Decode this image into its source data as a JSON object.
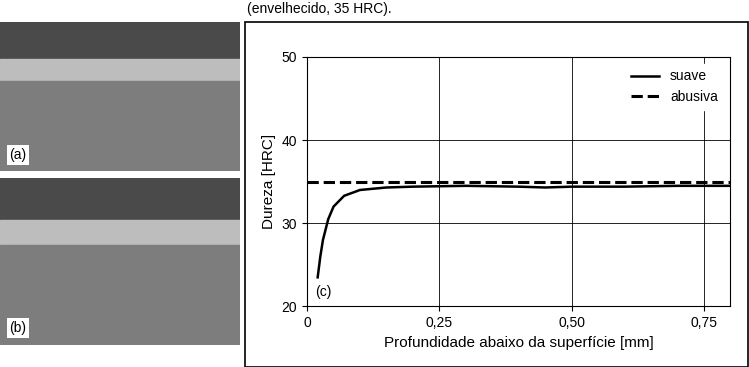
{
  "header_text": "(envelhecido, 35 HRC).",
  "photo_labels": [
    "(a)",
    "(b)"
  ],
  "chart_data": {
    "type": "line",
    "panel_label": "(c)",
    "x_label": "Profundidade abaixo da superfície [mm]",
    "y_label": "Dureza [HRC]",
    "xlim": [
      0,
      0.8
    ],
    "ylim": [
      20,
      50
    ],
    "xticks": [
      {
        "value": 0,
        "label": "0"
      },
      {
        "value": 0.25,
        "label": "0,25"
      },
      {
        "value": 0.5,
        "label": "0,50"
      },
      {
        "value": 0.75,
        "label": "0,75"
      }
    ],
    "yticks": [
      20,
      30,
      40,
      50
    ],
    "grid": true,
    "legend": "upper right",
    "series": [
      {
        "name": "suave",
        "color": "#000000",
        "line_style": "solid",
        "x": [
          0.02,
          0.025,
          0.03,
          0.04,
          0.05,
          0.07,
          0.1,
          0.15,
          0.2,
          0.3,
          0.4,
          0.45,
          0.5,
          0.6,
          0.7,
          0.8
        ],
        "values": [
          23.5,
          26,
          28,
          30.5,
          32,
          33.3,
          34,
          34.3,
          34.4,
          34.5,
          34.4,
          34.3,
          34.4,
          34.4,
          34.5,
          34.5
        ]
      },
      {
        "name": "abusiva",
        "color": "#000000",
        "line_style": "dashed",
        "x": [
          0,
          0.8
        ],
        "values": [
          35,
          35
        ]
      }
    ]
  }
}
